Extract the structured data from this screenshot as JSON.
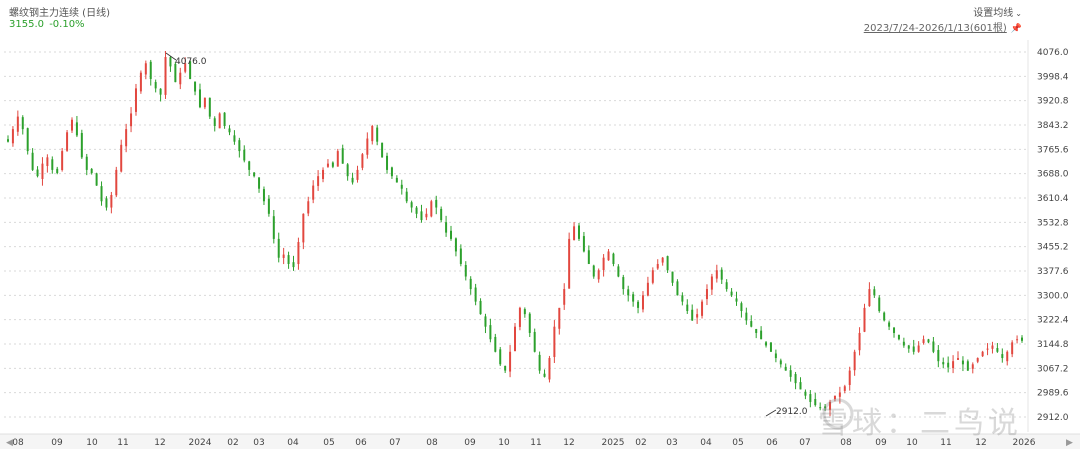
{
  "header": {
    "title": "螺纹钢主力连续 (日线)",
    "price": "3155.0",
    "change": "-0.10%",
    "settings_label": "设置均线",
    "range_label": "2023/7/24-2026/1/13(601根)"
  },
  "watermark": {
    "text": "雪球：二鸟说"
  },
  "colors": {
    "up": "#e2473f",
    "down": "#2ca02c",
    "grid": "#d9d9d9",
    "text": "#444444"
  },
  "chart_data": {
    "type": "candlestick",
    "ylim": [
      2880,
      4110
    ],
    "y_ticks": [
      "4076.0",
      "3998.4",
      "3920.8",
      "3843.2",
      "3765.6",
      "3688.0",
      "3610.4",
      "3532.8",
      "3455.2",
      "3377.6",
      "3300.0",
      "3222.4",
      "3144.8",
      "3067.2",
      "2989.6",
      "2912.0"
    ],
    "x_ticks": [
      "08",
      "09",
      "10",
      "11",
      "12",
      "2024",
      "02",
      "03",
      "04",
      "05",
      "06",
      "07",
      "08",
      "09",
      "10",
      "11",
      "12",
      "2025",
      "02",
      "03",
      "04",
      "05",
      "06",
      "07",
      "08",
      "09",
      "10",
      "11",
      "12",
      "2026"
    ],
    "annotations": [
      {
        "text": "4076.0",
        "date": "2023-12",
        "value": 4076.0
      },
      {
        "text": "2912.0",
        "date": "2025-06",
        "value": 2912.0
      }
    ],
    "series": [
      {
        "values": [
          3790,
          3830,
          3870,
          3830,
          3760,
          3700,
          3680,
          3720,
          3740,
          3700,
          3690,
          3760,
          3820,
          3860,
          3810,
          3740,
          3700,
          3690,
          3650,
          3600,
          3580,
          3620,
          3700,
          3780,
          3830,
          3880,
          3960,
          4010,
          4040,
          3990,
          3960,
          3940,
          4060,
          4030,
          3980,
          4010,
          4040,
          3990,
          3950,
          3900,
          3930,
          3870,
          3840,
          3880,
          3840,
          3820,
          3790,
          3760,
          3730,
          3700,
          3680,
          3640,
          3600,
          3560,
          3480,
          3420,
          3430,
          3400,
          3390,
          3470,
          3560,
          3600,
          3650,
          3680,
          3700,
          3720,
          3710,
          3760,
          3720,
          3680,
          3660,
          3700,
          3750,
          3800,
          3840,
          3790,
          3740,
          3700,
          3680,
          3660,
          3640,
          3600,
          3580,
          3560,
          3540,
          3560,
          3600,
          3580,
          3540,
          3500,
          3480,
          3440,
          3400,
          3360,
          3320,
          3280,
          3240,
          3200,
          3160,
          3120,
          3080,
          3060,
          3120,
          3200,
          3260,
          3240,
          3180,
          3120,
          3060,
          3040,
          3100,
          3200,
          3260,
          3320,
          3480,
          3520,
          3480,
          3440,
          3400,
          3360,
          3380,
          3420,
          3440,
          3400,
          3360,
          3320,
          3300,
          3280,
          3260,
          3300,
          3340,
          3380,
          3400,
          3420,
          3380,
          3340,
          3300,
          3280,
          3250,
          3220,
          3240,
          3280,
          3320,
          3360,
          3380,
          3350,
          3320,
          3300,
          3280,
          3250,
          3220,
          3200,
          3180,
          3160,
          3140,
          3120,
          3100,
          3080,
          3060,
          3040,
          3020,
          3000,
          2980,
          2960,
          2950,
          2940,
          2940,
          2960,
          2980,
          2990,
          3010,
          3060,
          3120,
          3180,
          3260,
          3320,
          3300,
          3250,
          3220,
          3200,
          3180,
          3160,
          3140,
          3130,
          3120,
          3140,
          3160,
          3150,
          3120,
          3090,
          3080,
          3070,
          3090,
          3100,
          3080,
          3060,
          3080,
          3100,
          3120,
          3130,
          3140,
          3120,
          3100,
          3120,
          3150,
          3160,
          3155
        ]
      }
    ]
  }
}
